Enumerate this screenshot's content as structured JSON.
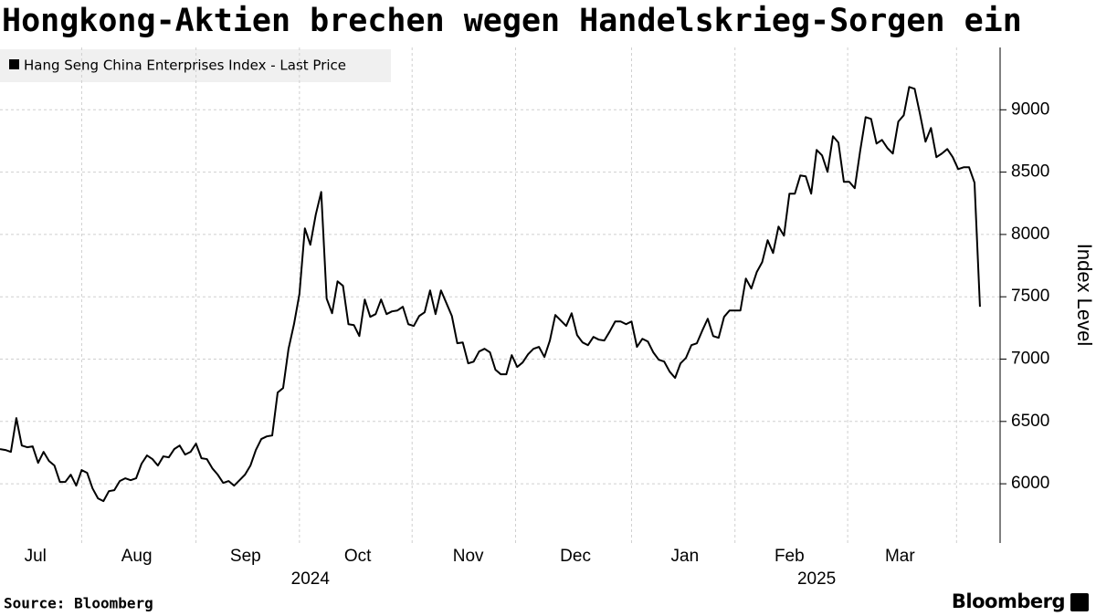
{
  "chart_data": {
    "type": "line",
    "title": "Hongkong-Aktien brechen wegen Handelskrieg-Sorgen ein",
    "y_axis_label": "Index Level",
    "source": "Source: Bloomberg",
    "brand": "Bloomberg",
    "series": [
      {
        "name": "Hang Seng China Enterprises Index - Last Price",
        "color": "#000000",
        "values": [
          6278,
          6271,
          6256,
          6527,
          6307,
          6293,
          6300,
          6168,
          6256,
          6183,
          6146,
          6015,
          6015,
          6073,
          5985,
          6110,
          6088,
          5963,
          5883,
          5861,
          5941,
          5949,
          6022,
          6044,
          6029,
          6044,
          6161,
          6227,
          6198,
          6146,
          6220,
          6212,
          6278,
          6307,
          6234,
          6256,
          6322,
          6205,
          6198,
          6124,
          6073,
          6007,
          6022,
          5985,
          6029,
          6073,
          6146,
          6271,
          6359,
          6380,
          6388,
          6732,
          6768,
          7083,
          7280,
          7522,
          8049,
          7917,
          8159,
          8341,
          7485,
          7368,
          7624,
          7588,
          7280,
          7273,
          7185,
          7478,
          7339,
          7361,
          7478,
          7361,
          7383,
          7390,
          7420,
          7280,
          7266,
          7346,
          7376,
          7551,
          7361,
          7551,
          7449,
          7346,
          7127,
          7134,
          6966,
          6980,
          7061,
          7083,
          7054,
          6915,
          6878,
          6878,
          7032,
          6937,
          6973,
          7039,
          7083,
          7098,
          7017,
          7149,
          7354,
          7310,
          7266,
          7368,
          7193,
          7134,
          7112,
          7178,
          7156,
          7149,
          7222,
          7302,
          7302,
          7280,
          7302,
          7098,
          7163,
          7141,
          7054,
          6995,
          6980,
          6900,
          6849,
          6966,
          7010,
          7112,
          7127,
          7229,
          7324,
          7185,
          7171,
          7339,
          7390,
          7390,
          7390,
          7646,
          7566,
          7698,
          7778,
          7954,
          7851,
          8063,
          7990,
          8327,
          8327,
          8473,
          8466,
          8327,
          8678,
          8634,
          8502,
          8788,
          8737,
          8422,
          8422,
          8371,
          8671,
          8941,
          8927,
          8729,
          8758,
          8693,
          8649,
          8905,
          8956,
          9183,
          9168,
          8963,
          8744,
          8854,
          8620,
          8649,
          8685,
          8620,
          8524,
          8539,
          8539,
          8415,
          7420
        ]
      }
    ],
    "xlim": [
      0,
      183.7
    ],
    "xticks": [
      {
        "value": 6.5,
        "label": "Jul"
      },
      {
        "value": 25.1,
        "label": "Aug"
      },
      {
        "value": 45.1,
        "label": "Sep"
      },
      {
        "value": 65.7,
        "label": "Oct"
      },
      {
        "value": 86,
        "label": "Nov"
      },
      {
        "value": 105.7,
        "label": "Dec"
      },
      {
        "value": 125.8,
        "label": "Jan"
      },
      {
        "value": 145,
        "label": "Feb"
      },
      {
        "value": 165.3,
        "label": "Mar"
      }
    ],
    "xminorticks": [
      15,
      36,
      55,
      75.7,
      94.7,
      116,
      135,
      155.7,
      175.7
    ],
    "year_ticks": [
      {
        "value": 57,
        "label": "2024"
      },
      {
        "value": 150,
        "label": "2025"
      }
    ],
    "ylim": [
      5525,
      9500
    ],
    "yticks": [
      6000,
      6500,
      7000,
      7500,
      8000,
      8500,
      9000
    ],
    "grid": true
  }
}
